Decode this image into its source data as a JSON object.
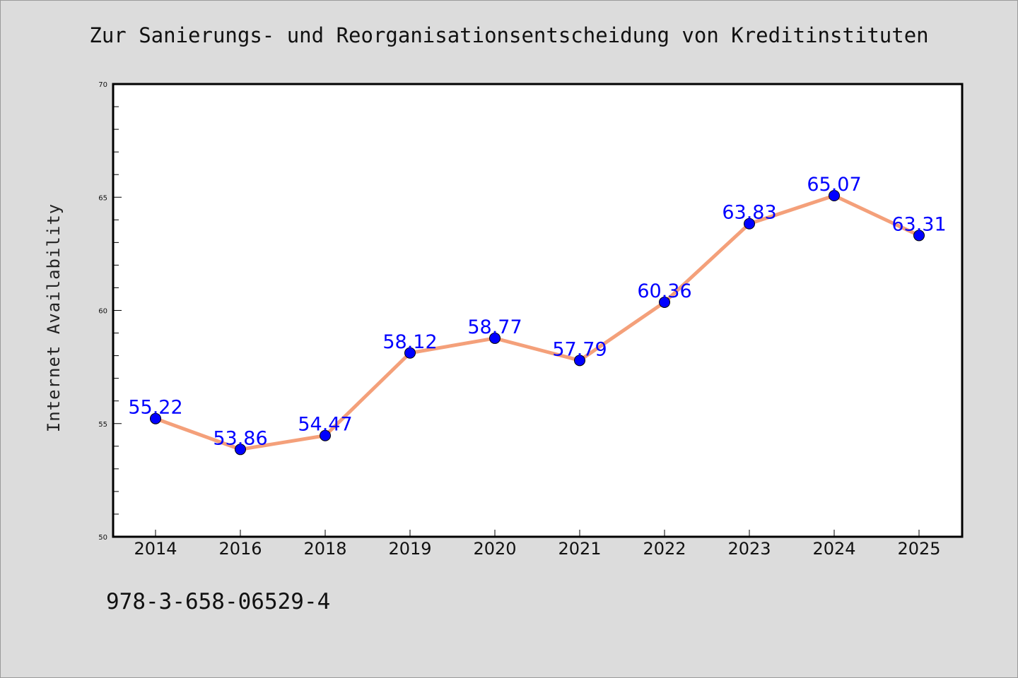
{
  "chart_data": {
    "type": "line",
    "title": "Zur Sanierungs- und Reorganisationsentscheidung von Kreditinstituten",
    "xlabel": "",
    "ylabel": "Internet Availability",
    "categories": [
      "2014",
      "2016",
      "2018",
      "2019",
      "2020",
      "2021",
      "2022",
      "2023",
      "2024",
      "2025"
    ],
    "series": [
      {
        "values": [
          55.22,
          53.86,
          54.47,
          58.12,
          58.77,
          57.79,
          60.36,
          63.83,
          65.07,
          63.31
        ],
        "labels": [
          "55.22",
          "53.86",
          "54.47",
          "58.12",
          "58.77",
          "57.79",
          "60.36",
          "63.83",
          "65.07",
          "63.31"
        ]
      }
    ],
    "ylim": [
      50,
      70
    ],
    "yticks": [
      "50",
      "55",
      "60",
      "65",
      "70"
    ],
    "grid": false,
    "colors": {
      "line": "#f4a07a",
      "marker": "#0000ff",
      "label": "#0000ff"
    }
  },
  "footer": {
    "isbn": "978-3-658-06529-4"
  }
}
